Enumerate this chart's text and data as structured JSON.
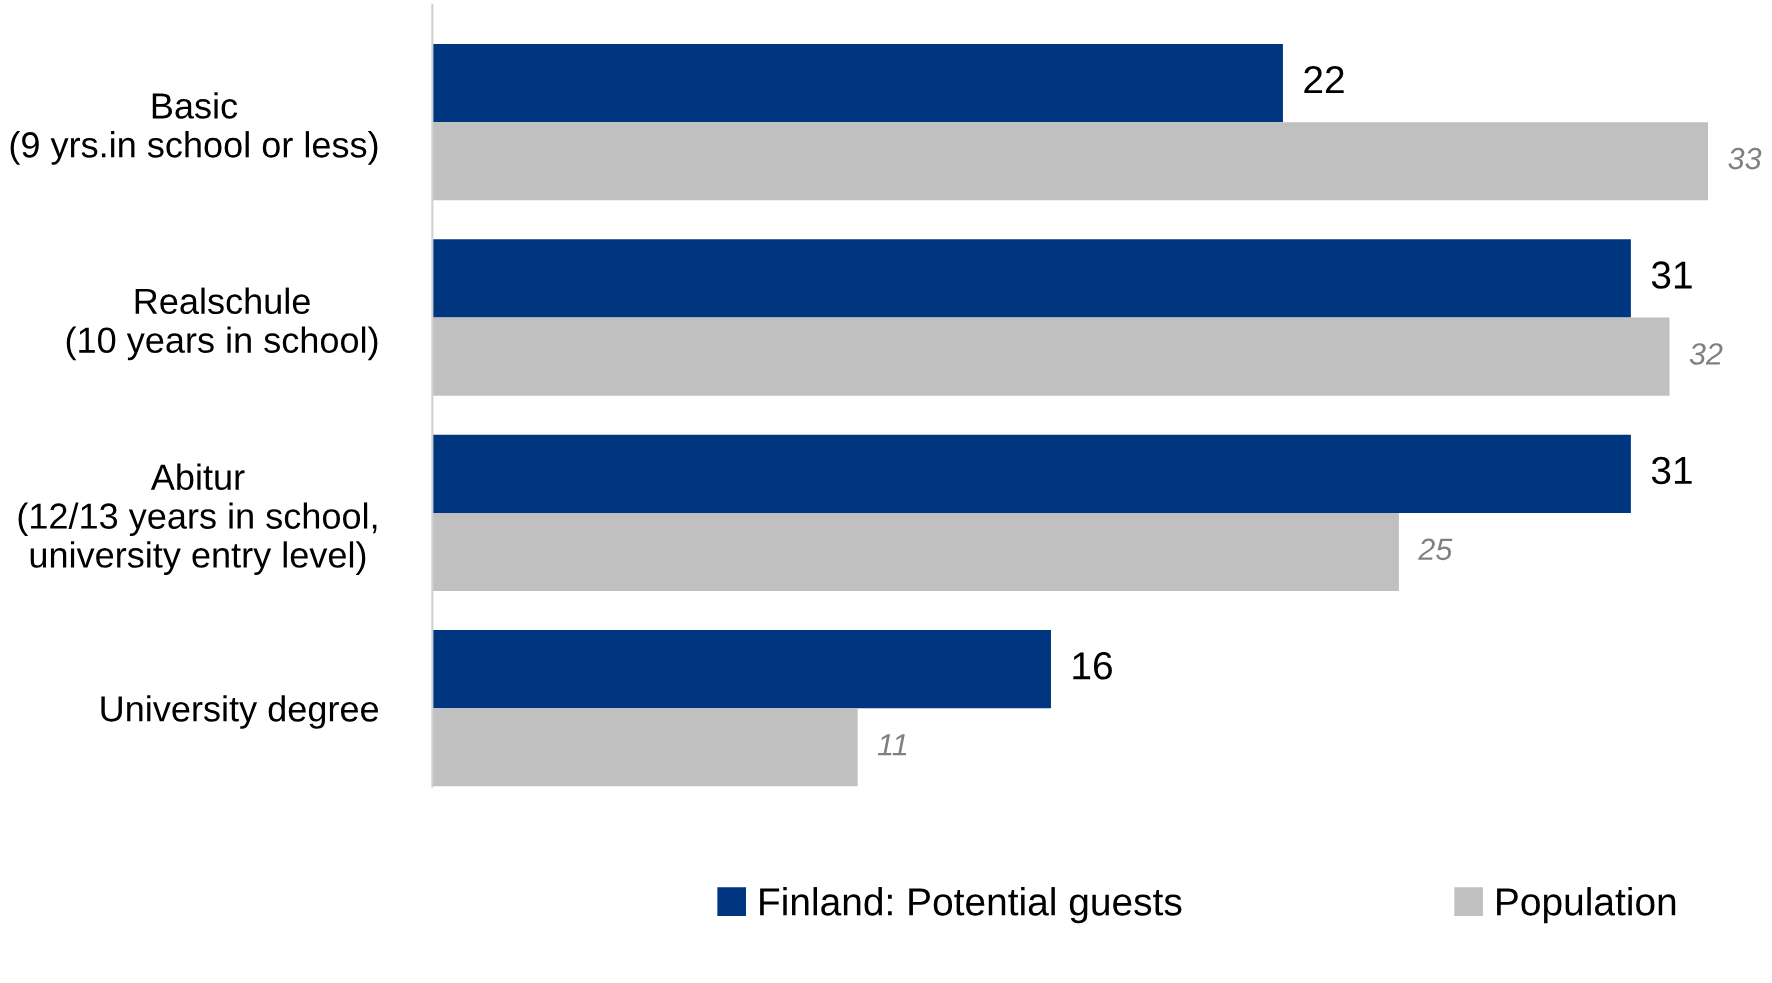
{
  "chart_data": {
    "type": "bar",
    "orientation": "horizontal",
    "categories": [
      "Basic\n(9 yrs.in school or less)",
      "Realschule\n(10 years in school)",
      "Abitur\n(12/13 years in school,\nuniversity entry level)",
      "University degree"
    ],
    "series": [
      {
        "name": "Finland: Potential guests",
        "color": "#003580",
        "values": [
          22,
          31,
          31,
          16
        ]
      },
      {
        "name": "Population",
        "color": "#c0c0c0",
        "values": [
          33,
          32,
          25,
          11
        ]
      }
    ],
    "data_labels": true,
    "legend": "bottom",
    "grid": false
  }
}
